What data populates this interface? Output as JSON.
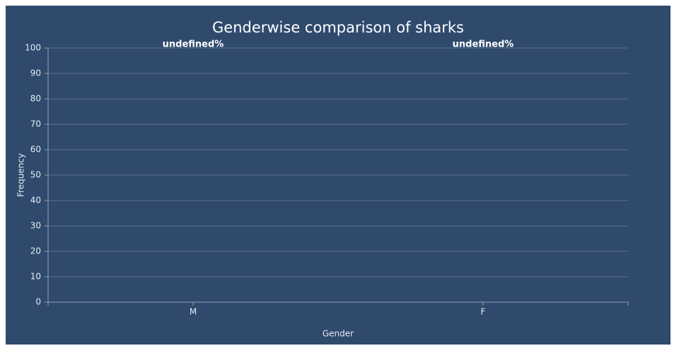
{
  "chart_data": {
    "type": "bar",
    "title": "Genderwise comparison of sharks",
    "x_label": "Gender",
    "y_label": "Frequency",
    "categories": [
      "M",
      "F"
    ],
    "values": [
      null,
      null
    ],
    "value_labels": [
      "undefined%",
      "undefined%"
    ],
    "color": "#4f81bd",
    "ylim": [
      0,
      100
    ],
    "yticks": [
      0,
      10,
      20,
      30,
      40,
      50,
      60,
      70,
      80,
      90,
      100
    ],
    "grid": true
  }
}
